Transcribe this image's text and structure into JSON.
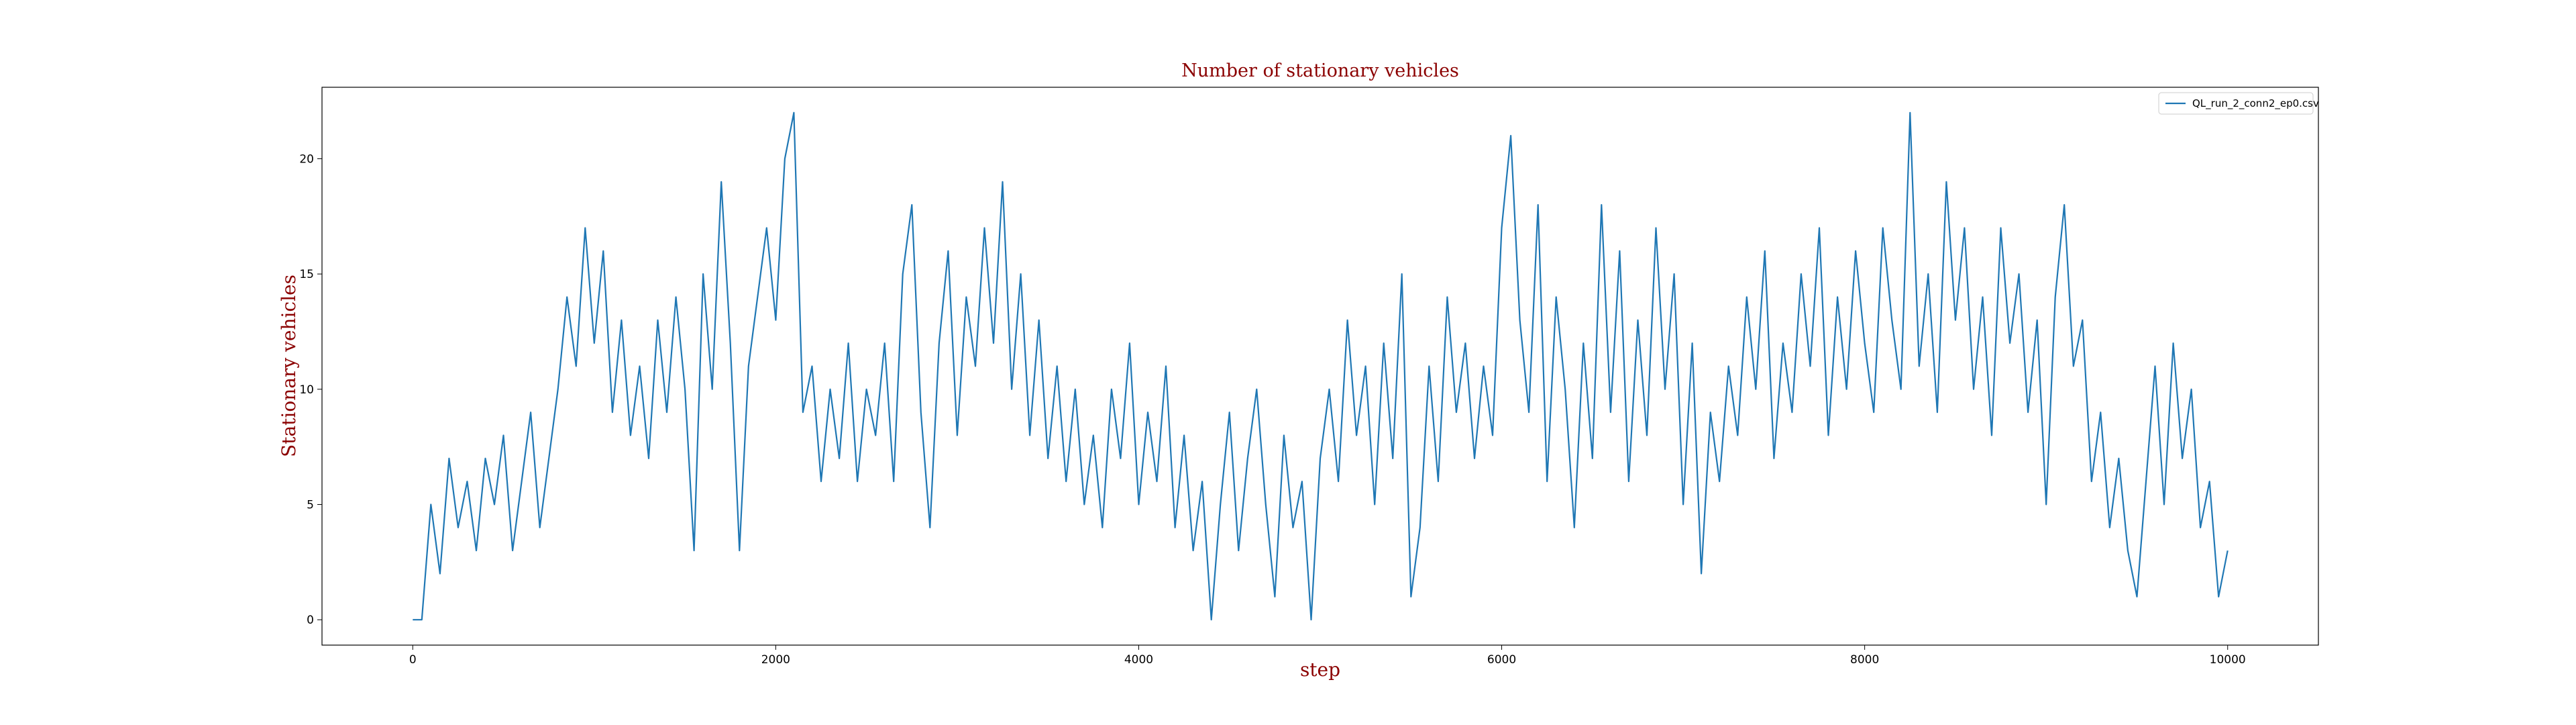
{
  "chart_data": {
    "type": "line",
    "title": "Number of stationary vehicles",
    "xlabel": "step",
    "ylabel": "Stationary vehicles",
    "x": [
      0,
      50,
      100,
      150,
      200,
      250,
      300,
      350,
      400,
      450,
      500,
      550,
      600,
      650,
      700,
      750,
      800,
      850,
      900,
      950,
      1000,
      1050,
      1100,
      1150,
      1200,
      1250,
      1300,
      1350,
      1400,
      1450,
      1500,
      1550,
      1600,
      1650,
      1700,
      1750,
      1800,
      1850,
      1900,
      1950,
      2000,
      2050,
      2100,
      2150,
      2200,
      2250,
      2300,
      2350,
      2400,
      2450,
      2500,
      2550,
      2600,
      2650,
      2700,
      2750,
      2800,
      2850,
      2900,
      2950,
      3000,
      3050,
      3100,
      3150,
      3200,
      3250,
      3300,
      3350,
      3400,
      3450,
      3500,
      3550,
      3600,
      3650,
      3700,
      3750,
      3800,
      3850,
      3900,
      3950,
      4000,
      4050,
      4100,
      4150,
      4200,
      4250,
      4300,
      4350,
      4400,
      4450,
      4500,
      4550,
      4600,
      4650,
      4700,
      4750,
      4800,
      4850,
      4900,
      4950,
      5000,
      5050,
      5100,
      5150,
      5200,
      5250,
      5300,
      5350,
      5400,
      5450,
      5500,
      5550,
      5600,
      5650,
      5700,
      5750,
      5800,
      5850,
      5900,
      5950,
      6000,
      6050,
      6100,
      6150,
      6200,
      6250,
      6300,
      6350,
      6400,
      6450,
      6500,
      6550,
      6600,
      6650,
      6700,
      6750,
      6800,
      6850,
      6900,
      6950,
      7000,
      7050,
      7100,
      7150,
      7200,
      7250,
      7300,
      7350,
      7400,
      7450,
      7500,
      7550,
      7600,
      7650,
      7700,
      7750,
      7800,
      7850,
      7900,
      7950,
      8000,
      8050,
      8100,
      8150,
      8200,
      8250,
      8300,
      8350,
      8400,
      8450,
      8500,
      8550,
      8600,
      8650,
      8700,
      8750,
      8800,
      8850,
      8900,
      8950,
      9000,
      9050,
      9100,
      9150,
      9200,
      9250,
      9300,
      9350,
      9400,
      9450,
      9500,
      9550,
      9600,
      9650,
      9700,
      9750,
      9800,
      9850,
      9900,
      9950,
      10000
    ],
    "series": [
      {
        "name": "QL_run_2_conn2_ep0.csv",
        "color": "#1f77b4",
        "values": [
          0,
          0,
          5,
          2,
          7,
          4,
          6,
          3,
          7,
          5,
          8,
          3,
          6,
          9,
          4,
          7,
          10,
          14,
          11,
          17,
          12,
          16,
          9,
          13,
          8,
          11,
          7,
          13,
          9,
          14,
          10,
          3,
          15,
          10,
          19,
          12,
          3,
          11,
          14,
          17,
          13,
          20,
          22,
          9,
          11,
          6,
          10,
          7,
          12,
          6,
          10,
          8,
          12,
          6,
          15,
          18,
          9,
          4,
          12,
          16,
          8,
          14,
          11,
          17,
          12,
          19,
          10,
          15,
          8,
          13,
          7,
          11,
          6,
          10,
          5,
          8,
          4,
          10,
          7,
          12,
          5,
          9,
          6,
          11,
          4,
          8,
          3,
          6,
          0,
          5,
          9,
          3,
          7,
          10,
          5,
          1,
          8,
          4,
          6,
          0,
          7,
          10,
          6,
          13,
          8,
          11,
          5,
          12,
          7,
          15,
          1,
          4,
          11,
          6,
          14,
          9,
          12,
          7,
          11,
          8,
          17,
          21,
          13,
          9,
          18,
          6,
          14,
          10,
          4,
          12,
          7,
          18,
          9,
          16,
          6,
          13,
          8,
          17,
          10,
          15,
          5,
          12,
          2,
          9,
          6,
          11,
          8,
          14,
          10,
          16,
          7,
          12,
          9,
          15,
          11,
          17,
          8,
          14,
          10,
          16,
          12,
          9,
          17,
          13,
          10,
          22,
          11,
          15,
          9,
          19,
          13,
          17,
          10,
          14,
          8,
          17,
          12,
          15,
          9,
          13,
          5,
          14,
          18,
          11,
          13,
          6,
          9,
          4,
          7,
          3,
          1,
          6,
          11,
          5,
          12,
          7,
          10,
          4,
          6,
          1,
          3
        ]
      }
    ],
    "xlim": [
      -500,
      10500
    ],
    "ylim": [
      -1.1,
      23.1
    ],
    "xticks": [
      0,
      2000,
      4000,
      6000,
      8000,
      10000
    ],
    "yticks": [
      0,
      5,
      10,
      15,
      20
    ],
    "legend": "upper right"
  }
}
